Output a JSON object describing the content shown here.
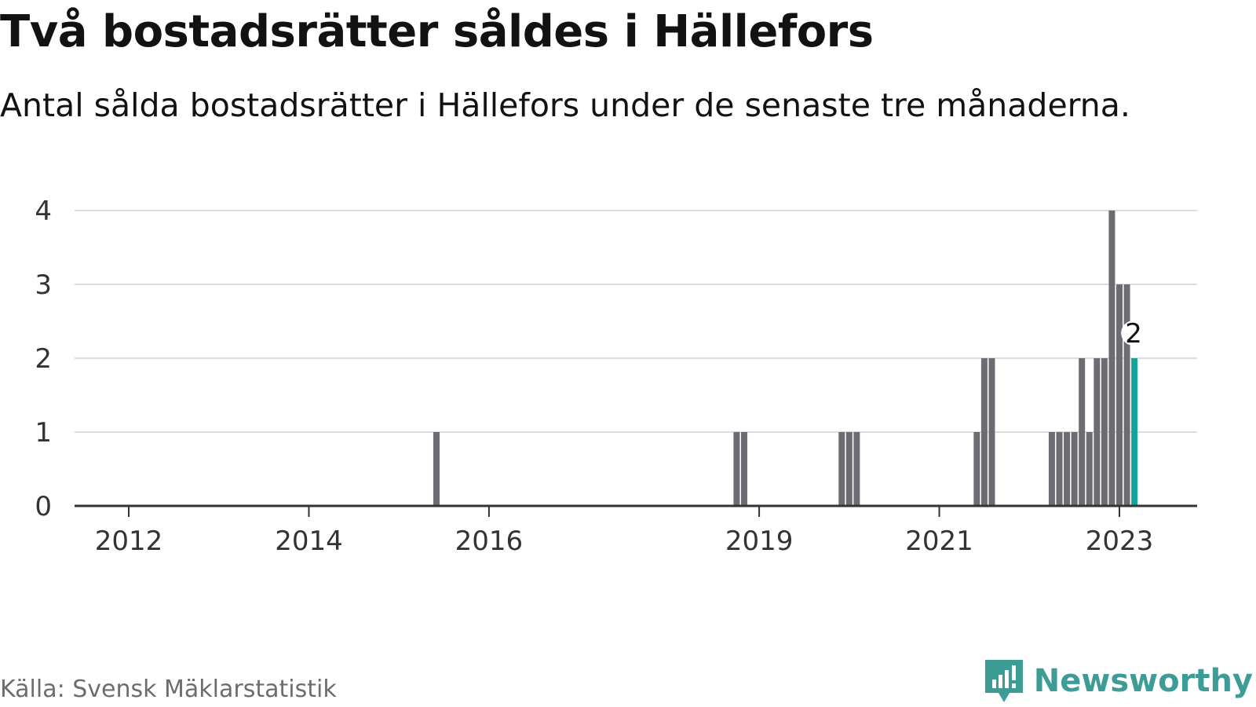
{
  "title": "Två bostadsrätter såldes i Hällefors",
  "subtitle": "Antal sålda bostadsrätter i Hällefors under de senaste tre månaderna.",
  "source": "Källa: Svensk Mäklarstatistik",
  "brand": {
    "name": "Newsworthy",
    "color": "#3e9c97",
    "icon": "newsworthy-logo-icon"
  },
  "colors": {
    "bar": "#6d6c73",
    "highlight": "#14a39a",
    "grid": "#dddddd",
    "axis": "#333333"
  },
  "chart_data": {
    "type": "bar",
    "title": "Två bostadsrätter såldes i Hällefors",
    "subtitle": "Antal sålda bostadsrätter i Hällefors under de senaste tre månaderna.",
    "xlabel": "",
    "ylabel": "",
    "ylim": [
      0,
      4
    ],
    "yticks": [
      0,
      1,
      2,
      3,
      4
    ],
    "xticks": [
      "2012",
      "2014",
      "2016",
      "2019",
      "2021",
      "2023"
    ],
    "grid": true,
    "legend": "none",
    "bar_period": "3-month rolling sum, monthly",
    "bars": [
      {
        "date": "2015-06",
        "value": 1
      },
      {
        "date": "2018-10",
        "value": 1
      },
      {
        "date": "2018-11",
        "value": 1
      },
      {
        "date": "2019-12",
        "value": 1
      },
      {
        "date": "2020-01",
        "value": 1
      },
      {
        "date": "2020-02",
        "value": 1
      },
      {
        "date": "2021-06",
        "value": 1
      },
      {
        "date": "2021-07",
        "value": 2
      },
      {
        "date": "2021-08",
        "value": 2
      },
      {
        "date": "2022-04",
        "value": 1
      },
      {
        "date": "2022-05",
        "value": 1
      },
      {
        "date": "2022-06",
        "value": 1
      },
      {
        "date": "2022-07",
        "value": 1
      },
      {
        "date": "2022-08",
        "value": 2
      },
      {
        "date": "2022-09",
        "value": 1
      },
      {
        "date": "2022-10",
        "value": 2
      },
      {
        "date": "2022-11",
        "value": 2
      },
      {
        "date": "2022-12",
        "value": 4
      },
      {
        "date": "2023-01",
        "value": 3
      },
      {
        "date": "2023-02",
        "value": 3
      },
      {
        "date": "2023-03",
        "value": 2,
        "highlight": true,
        "label": "2"
      }
    ]
  }
}
